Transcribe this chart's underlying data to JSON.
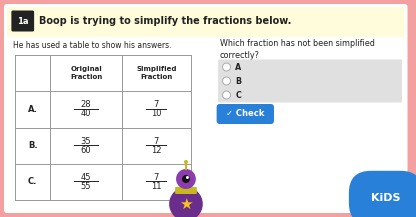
{
  "bg_color": "#f5a0a0",
  "main_bg": "#ffffff",
  "header_bg": "#fefcda",
  "header_label_bg": "#222222",
  "header_label_text": "1a",
  "header_text": "Boop is trying to simplify the fractions below.",
  "left_subtitle": "He has used a table to show his answers.",
  "right_subtitle": "Which fraction has not been simplified\ncorrectly?",
  "table_rows": [
    {
      "label": "A.",
      "orig_num": "28",
      "orig_den": "40",
      "simp_num": "7",
      "simp_den": "10"
    },
    {
      "label": "B.",
      "orig_num": "35",
      "orig_den": "60",
      "simp_num": "7",
      "simp_den": "12"
    },
    {
      "label": "C.",
      "orig_num": "45",
      "orig_den": "55",
      "simp_num": "7",
      "simp_den": "11"
    }
  ],
  "table_col_headers": [
    "Original\nFraction",
    "Simplified\nFraction"
  ],
  "radio_options": [
    "A",
    "B",
    "C"
  ],
  "check_button_color": "#2980d9",
  "check_button_text": "Check",
  "radio_bg": "#e0e0e0",
  "table_border": "#999999",
  "text_color": "#222222",
  "pink_border": 7
}
